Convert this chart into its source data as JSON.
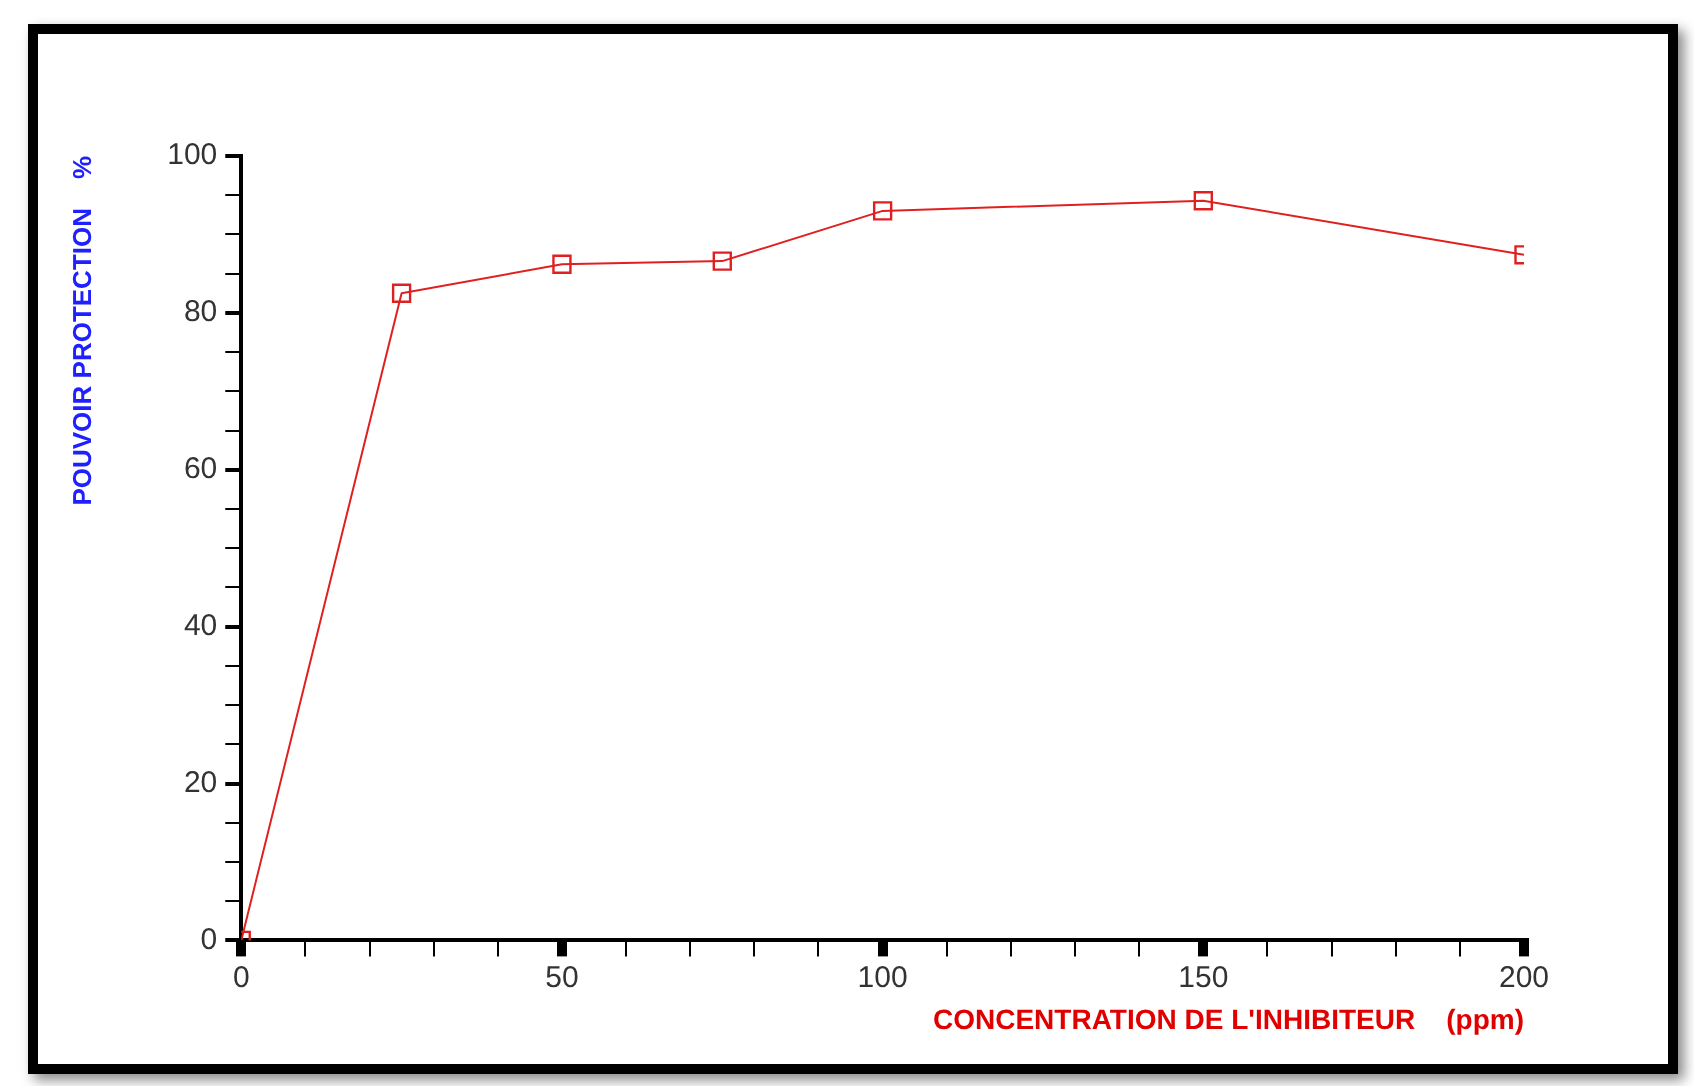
{
  "chart_data": {
    "type": "line",
    "xlabel": "CONCENTRATION DE L'INHIBITEUR    (ppm)",
    "ylabel": "POUVOIR PROTECTION    %",
    "x": [
      0,
      25,
      50,
      75,
      100,
      150,
      200
    ],
    "series": [
      {
        "color": "#e02020",
        "values": [
          0,
          82.5,
          86.2,
          86.6,
          93.0,
          94.3,
          87.4
        ]
      }
    ],
    "xlim": [
      0,
      200
    ],
    "xticks": [
      0,
      {
        "value": 10,
        "label": null
      },
      {
        "value": 20,
        "label": null
      },
      {
        "value": 30,
        "label": null
      },
      {
        "value": 40,
        "label": null
      },
      50,
      {
        "value": 60,
        "label": null
      },
      {
        "value": 70,
        "label": null
      },
      {
        "value": 80,
        "label": null
      },
      {
        "value": 90,
        "label": null
      },
      100,
      {
        "value": 110,
        "label": null
      },
      {
        "value": 120,
        "label": null
      },
      {
        "value": 130,
        "label": null
      },
      {
        "value": 140,
        "label": null
      },
      150,
      {
        "value": 160,
        "label": null
      },
      {
        "value": 170,
        "label": null
      },
      {
        "value": 180,
        "label": null
      },
      {
        "value": 190,
        "label": null
      },
      200
    ],
    "ylim": [
      0,
      100
    ],
    "yticks": [
      0,
      {
        "value": 5,
        "label": null
      },
      {
        "value": 10,
        "label": null
      },
      {
        "value": 15,
        "label": null
      },
      20,
      {
        "value": 25,
        "label": null
      },
      {
        "value": 30,
        "label": null
      },
      {
        "value": 35,
        "label": null
      },
      40,
      {
        "value": 45,
        "label": null
      },
      {
        "value": 50,
        "label": null
      },
      {
        "value": 55,
        "label": null
      },
      60,
      {
        "value": 65,
        "label": null
      },
      {
        "value": 70,
        "label": null
      },
      {
        "value": 75,
        "label": null
      },
      80,
      {
        "value": 85,
        "label": null
      },
      {
        "value": 90,
        "label": null
      },
      {
        "value": 95,
        "label": null
      },
      100
    ],
    "grid": false,
    "legend": false,
    "marker": "square",
    "line_style": "solid"
  }
}
